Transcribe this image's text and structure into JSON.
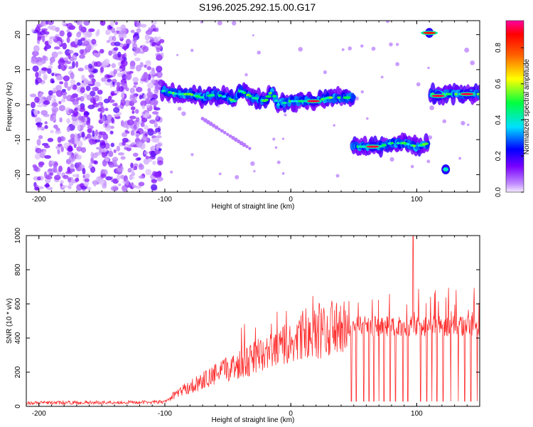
{
  "title": "S196.2025.292.15.00.G17",
  "chart_data": [
    {
      "type": "heatmap",
      "xlabel": "Height of straight line (km)",
      "ylabel": "Frequency (Hz)",
      "xlim": [
        -210,
        150
      ],
      "ylim": [
        -25,
        24
      ],
      "x_ticks": [
        -200,
        -100,
        0,
        100
      ],
      "y_ticks": [
        -20,
        -10,
        0,
        10,
        20
      ],
      "noise_region": {
        "x": [
          -205,
          -102
        ],
        "y": [
          -24,
          24
        ]
      },
      "ridges": [
        {
          "x": [
            -102,
            -90,
            -80,
            -70,
            -60,
            -50,
            -45,
            -40,
            -30,
            -20,
            -15,
            -10,
            0,
            10,
            20,
            30,
            50
          ],
          "y": [
            4,
            3,
            3,
            2,
            3,
            2,
            1,
            4,
            2,
            1,
            4,
            0,
            1,
            1,
            1,
            2,
            2
          ]
        },
        {
          "x": [
            49,
            60,
            70,
            80,
            90,
            100,
            109
          ],
          "y": [
            -12,
            -12,
            -12,
            -11,
            -11,
            -12,
            -11
          ]
        },
        {
          "x": [
            111,
            120,
            130,
            140,
            150
          ],
          "y": [
            3,
            3,
            3,
            3,
            3
          ]
        }
      ],
      "blobs": [
        {
          "x": 110,
          "y": 20.5,
          "v": 0.9
        },
        {
          "x": 117,
          "y": 2.5,
          "v": 0.95
        },
        {
          "x": 123,
          "y": -18.5,
          "v": 0.4
        },
        {
          "x": 65,
          "y": -12,
          "v": 0.95
        },
        {
          "x": 18,
          "y": 1,
          "v": 0.95
        },
        {
          "x": 140,
          "y": 3,
          "v": 0.95
        }
      ],
      "colorbar": {
        "label": "Normalized spectral amplitude",
        "range": [
          0,
          0.95
        ],
        "ticks": [
          0.0,
          0.2,
          0.4,
          0.6,
          0.8
        ],
        "tick_labels": [
          "0.0",
          "0.2",
          "0.4",
          "0.6",
          "0.8"
        ]
      }
    },
    {
      "type": "line",
      "xlabel": "Height of straight line (km)",
      "ylabel": "SNR (10 * v/v)",
      "xlim": [
        -210,
        150
      ],
      "ylim": [
        0,
        1000
      ],
      "x_ticks": [
        -200,
        -100,
        0,
        100
      ],
      "y_ticks": [
        0,
        200,
        400,
        600,
        800,
        1000
      ],
      "color": "#ff3030",
      "envelope": [
        {
          "x": -210,
          "base": 20
        },
        {
          "x": -100,
          "base": 25
        },
        {
          "x": -90,
          "base": 80
        },
        {
          "x": -70,
          "base": 150
        },
        {
          "x": -50,
          "base": 220
        },
        {
          "x": -30,
          "base": 280
        },
        {
          "x": -10,
          "base": 340
        },
        {
          "x": 10,
          "base": 400
        },
        {
          "x": 30,
          "base": 440
        },
        {
          "x": 50,
          "base": 470
        },
        {
          "x": 150,
          "base": 470
        }
      ],
      "dropouts_x": [
        48,
        52,
        58,
        62,
        66,
        70,
        74,
        79,
        83,
        89,
        93,
        103,
        108,
        112,
        116,
        121,
        127,
        133,
        138,
        143,
        148
      ],
      "dropout_value": 30,
      "peak": {
        "x": 97,
        "y": 1000
      }
    }
  ]
}
